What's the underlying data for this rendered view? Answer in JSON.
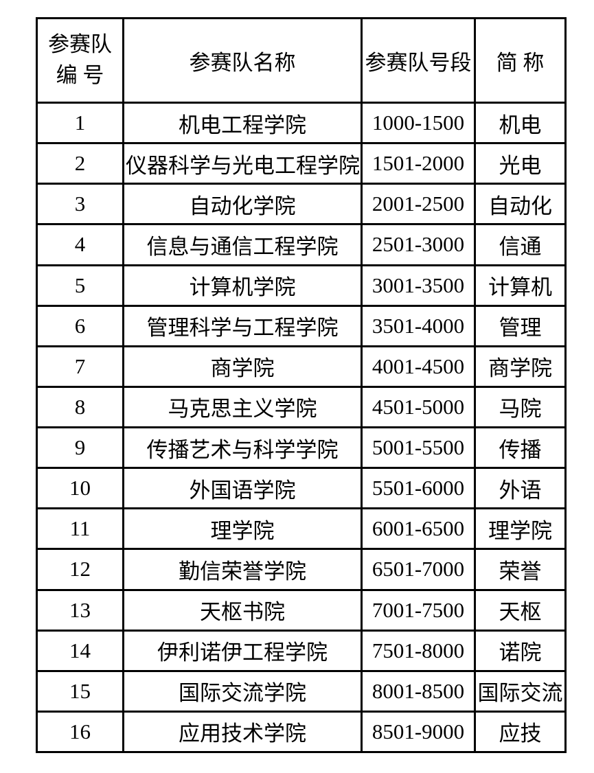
{
  "table": {
    "header": {
      "team_no_line1": "参赛队",
      "team_no_line2": "编 号",
      "team_name": "参赛队名称",
      "team_range": "参赛队号段",
      "abbr": "简 称"
    },
    "rows": [
      [
        "1",
        "机电工程学院",
        "1000-1500",
        "机电"
      ],
      [
        "2",
        "仪器科学与光电工程学院",
        "1501-2000",
        "光电"
      ],
      [
        "3",
        "自动化学院",
        "2001-2500",
        "自动化"
      ],
      [
        "4",
        "信息与通信工程学院",
        "2501-3000",
        "信通"
      ],
      [
        "5",
        "计算机学院",
        "3001-3500",
        "计算机"
      ],
      [
        "6",
        "管理科学与工程学院",
        "3501-4000",
        "管理"
      ],
      [
        "7",
        "商学院",
        "4001-4500",
        "商学院"
      ],
      [
        "8",
        "马克思主义学院",
        "4501-5000",
        "马院"
      ],
      [
        "9",
        "传播艺术与科学学院",
        "5001-5500",
        "传播"
      ],
      [
        "10",
        "外国语学院",
        "5501-6000",
        "外语"
      ],
      [
        "11",
        "理学院",
        "6001-6500",
        "理学院"
      ],
      [
        "12",
        "勤信荣誉学院",
        "6501-7000",
        "荣誉"
      ],
      [
        "13",
        "天枢书院",
        "7001-7500",
        "天枢"
      ],
      [
        "14",
        "伊利诺伊工程学院",
        "7501-8000",
        "诺院"
      ],
      [
        "15",
        "国际交流学院",
        "8001-8500",
        "国际交流"
      ],
      [
        "16",
        "应用技术学院",
        "8501-9000",
        "应技"
      ]
    ],
    "cell_names": [
      "cell-team-number",
      "cell-team-name",
      "cell-team-range",
      "cell-abbr"
    ],
    "border_color": "#000000",
    "background_color": "#ffffff"
  }
}
